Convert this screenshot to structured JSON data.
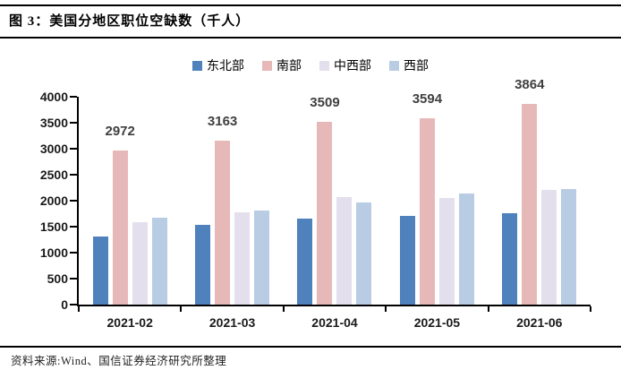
{
  "header": {
    "title": "图 3：美国分地区职位空缺数（千人）"
  },
  "footer": {
    "source": "资料来源:Wind、国信证券经济研究所整理"
  },
  "colors": {
    "northeast": "#4F81BD",
    "south": "#E6B9B8",
    "midwest": "#E4DFEC",
    "west": "#B8CCE4",
    "axis": "#000000",
    "value_label": "#3f3f3f"
  },
  "chart_data": {
    "type": "bar",
    "title": "美国分地区职位空缺数（千人）",
    "categories": [
      "2021-02",
      "2021-03",
      "2021-04",
      "2021-05",
      "2021-06"
    ],
    "series": [
      {
        "name": "东北部",
        "color": "#4F81BD",
        "values": [
          1310,
          1540,
          1650,
          1700,
          1760
        ],
        "data_labels": false
      },
      {
        "name": "南部",
        "color": "#E6B9B8",
        "values": [
          2972,
          3163,
          3509,
          3594,
          3864
        ],
        "data_labels": true
      },
      {
        "name": "中西部",
        "color": "#E4DFEC",
        "values": [
          1590,
          1780,
          2070,
          2060,
          2200
        ],
        "data_labels": false
      },
      {
        "name": "西部",
        "color": "#B8CCE4",
        "values": [
          1670,
          1810,
          1960,
          2130,
          2230
        ],
        "data_labels": false
      }
    ],
    "xlabel": "",
    "ylabel": "",
    "ylim": [
      0,
      4000
    ],
    "ytick_step": 500,
    "yticks": [
      0,
      500,
      1000,
      1500,
      2000,
      2500,
      3000,
      3500,
      4000
    ],
    "grid": false,
    "legend_position": "top"
  }
}
